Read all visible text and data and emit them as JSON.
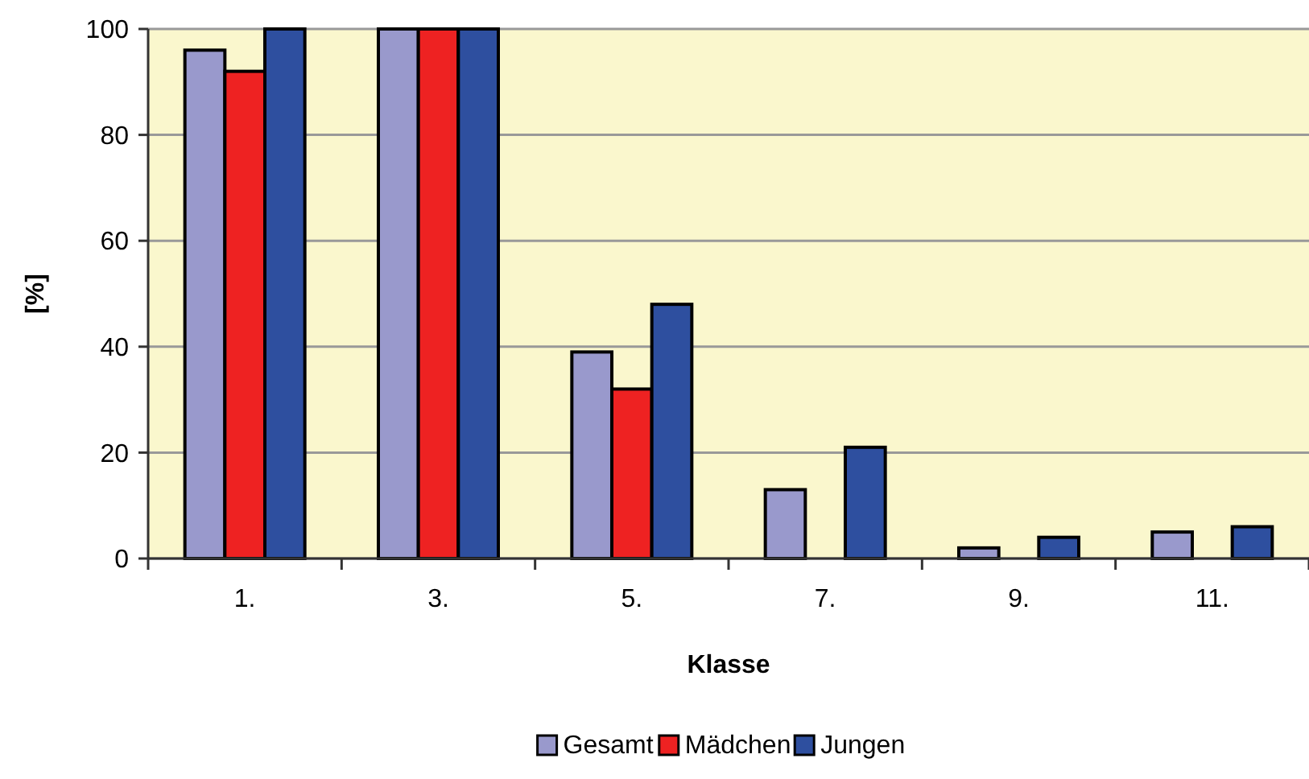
{
  "chart_data": {
    "type": "bar",
    "xlabel": "Klasse",
    "ylabel": "[%]",
    "categories": [
      "1.",
      "3.",
      "5.",
      "7.",
      "9.",
      "11."
    ],
    "series": [
      {
        "name": "Gesamt",
        "color": "#9999cc",
        "values": [
          96,
          100,
          39,
          13,
          2,
          5
        ]
      },
      {
        "name": "Mädchen",
        "color": "#ee2222",
        "values": [
          92,
          100,
          32,
          null,
          null,
          null
        ]
      },
      {
        "name": "Jungen",
        "color": "#2e4f9f",
        "values": [
          100,
          100,
          48,
          21,
          4,
          6
        ]
      }
    ],
    "ylim": [
      0,
      100
    ],
    "yticks": [
      0,
      20,
      40,
      60,
      80,
      100
    ],
    "grid": "y",
    "legend": "bottom"
  }
}
